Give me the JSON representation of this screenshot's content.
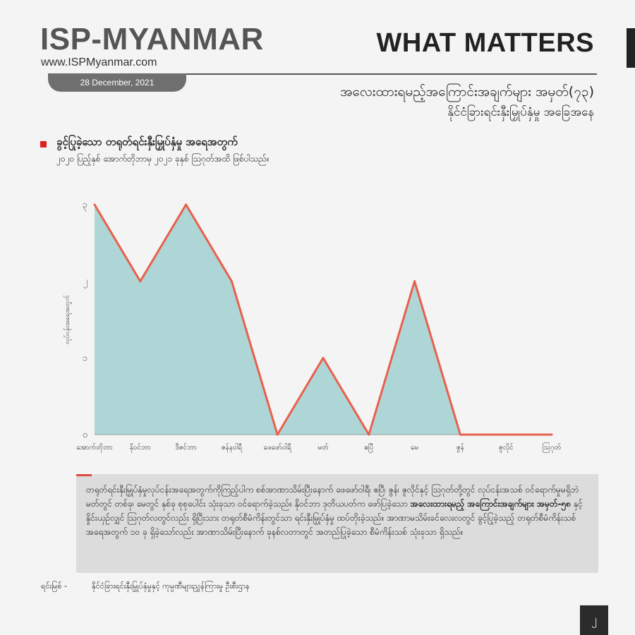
{
  "header": {
    "brand": "ISP-MYANMAR",
    "url": "www.ISPMyanmar.com",
    "date": "28 December, 2021",
    "wordmark": "WHAT MATTERS",
    "title_line1": "အလေးထားရမည့်အကြောင်းအချက်များ အမှတ်(၇၃)",
    "title_line2": "နိုင်ငံခြားရင်းနှီးမြှုပ်နှံမှု အခြေအနေ"
  },
  "section": {
    "heading": "ခွင့်ပြုခဲ့သော တရုတ်ရင်းနှီးမြှုပ်နှံမှု အရေအတွက်",
    "subheading": "၂၀၂၀ ပြည့်နှစ် အောက်တိုဘာမှ ၂၀၂၁ ခုနှစ် ဩဂုတ်အထိ ဖြစ်ပါသည်။"
  },
  "chart_data": {
    "type": "area",
    "categories": [
      "အောက်တိုဘာ",
      "နိုဝင်ဘာ",
      "ဒီဇင်ဘာ",
      "ဇန်နဝါရီ",
      "ဖေဖော်ဝါရီ",
      "မတ်",
      "ဧပြီ",
      "မေ",
      "ဇွန်",
      "ဇူလိုင်",
      "ဩဂုတ်"
    ],
    "values": [
      3,
      2,
      3,
      2,
      0,
      1,
      0,
      2,
      0,
      0,
      0
    ],
    "ylim": [
      0,
      3
    ],
    "yticks": [
      0,
      1,
      2,
      3
    ],
    "ytick_labels": [
      "၀",
      "၁",
      "၂",
      "၃"
    ],
    "ylabel": "လုပ်ငန်းအရေအတွက်",
    "xlabel": "",
    "title": "",
    "grid": false,
    "fill_color": "#afd6d6",
    "line_color": "#e8604c"
  },
  "note": {
    "p1": "တရုတ်ရင်းနှီးမြှုပ်နှံမှုလုပ်ငန်းအရေအတွက်ကိုကြည့်ပါက စစ်အာဏာသိမ်းပြီးနောက် ဖေဖော်ဝါရီ၊ ဧပြီ၊ ဇွန်၊ ဇူလိုင်နှင့် ဩဂုတ်တို့တွင် လုပ်ငန်းအသစ် ဝင်ရောက်မှုမရှိဘဲ မတ်တွင် တစ်ခု၊ မေတွင် နှစ်ခု စုစုပေါင်း သုံးခုသာ ဝင်ရောက်ခဲ့သည်။ နိုဝင်ဘာ ဒုတိယပတ်က ဖော်ပြခဲ့သော ",
    "bold": "အလေးထားရမည့် အကြောင်းအချက်များ အမှတ်-၅၈",
    "p2": " နှင့် နှိုင်းယှဉ်လျှင် ဩဂုတ်လတွင်လည်း ရှိပြီးသား တရုတ်စီမံကိန်းတွင်သာ ရင်းနှီးမြှုပ်နှံမှု ထပ်တိုးခဲ့သည်။ အာဏာမသိမ်းခင်လေးလတွင် ခွင့်ပြုခဲ့သည့် တရုတ်စီမံကိန်းသစ် အရေအတွက် ၁၀ ခု ရှိခဲ့သော်လည်း အာဏာသိမ်းပြီးနောက် ခုနစ်လတာတွင် အတည်ပြုခဲ့သော စီမံကိန်းသစ် သုံးခုသာ ရှိသည်။"
  },
  "source": {
    "label": "ရင်းမြစ် -",
    "text": "နိုင်ငံခြားရင်းနှီးမြှုပ်နှံမှုနှင့် ကုမ္ပဏီများညွှန်ကြားမှု ဦးစီးဌာန"
  },
  "page_number": "၂"
}
